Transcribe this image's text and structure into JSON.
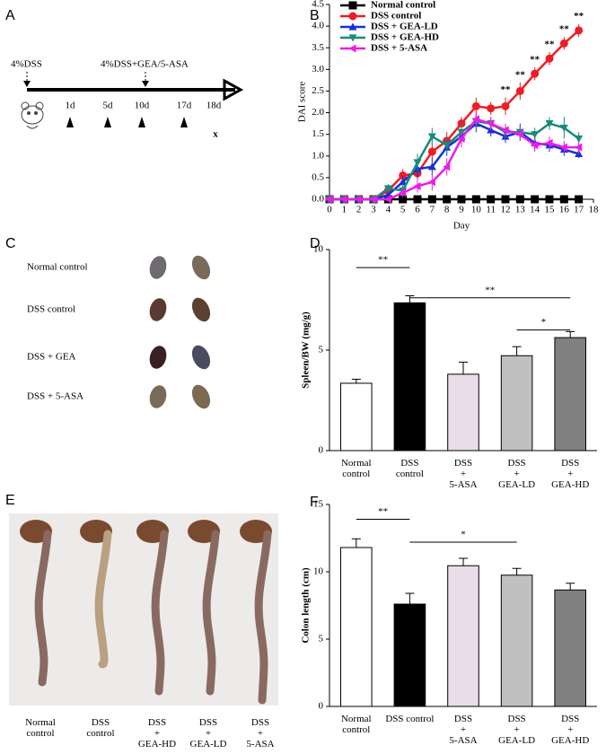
{
  "panel_a": {
    "label": "A",
    "dss_start": "4%DSS",
    "treatment_start": "4%DSS+GEA/5-ASA",
    "days": [
      "1d",
      "5d",
      "10d",
      "17d",
      "18d"
    ],
    "end_mark": "x"
  },
  "chart_data": [
    {
      "type": "line",
      "panel_label": "B",
      "xlabel": "Day",
      "ylabel": "DAI score",
      "x": [
        0,
        1,
        2,
        3,
        4,
        5,
        6,
        7,
        8,
        9,
        10,
        11,
        12,
        13,
        14,
        15,
        16,
        17
      ],
      "xlim": [
        0,
        18
      ],
      "xticks": [
        0,
        1,
        2,
        3,
        4,
        5,
        6,
        7,
        8,
        9,
        10,
        11,
        12,
        13,
        14,
        15,
        16,
        17,
        18
      ],
      "ylim": [
        0,
        4.5
      ],
      "yticks": [
        {
          "value": 0,
          "label": "0.0"
        },
        {
          "value": 0.5,
          "label": "0.5"
        },
        {
          "value": 1,
          "label": "1.0"
        },
        {
          "value": 1.5,
          "label": "1.5"
        },
        {
          "value": 2,
          "label": "2.0"
        },
        {
          "value": 2.5,
          "label": "2.5"
        },
        {
          "value": 3,
          "label": "3.0"
        },
        {
          "value": 3.5,
          "label": "3.5"
        },
        {
          "value": 4,
          "label": "4.0"
        },
        {
          "value": 4.5,
          "label": "4.5"
        }
      ],
      "legend": "upper left",
      "series": [
        {
          "name": "Normal control",
          "color": "#000000",
          "marker": "square",
          "values": [
            0,
            0,
            0,
            0,
            0,
            0,
            0,
            0,
            0,
            0,
            0,
            0,
            0,
            0,
            0,
            0,
            0,
            0
          ],
          "errors": [
            0,
            0,
            0,
            0,
            0,
            0,
            0,
            0,
            0,
            0,
            0,
            0,
            0,
            0,
            0,
            0,
            0,
            0
          ]
        },
        {
          "name": "DSS control",
          "color": "#ee1c24",
          "marker": "circle",
          "values": [
            0,
            0,
            0,
            0,
            0.2,
            0.55,
            0.6,
            1.1,
            1.35,
            1.75,
            2.15,
            2.1,
            2.15,
            2.5,
            2.9,
            3.25,
            3.6,
            3.9
          ],
          "errors": [
            0,
            0,
            0,
            0,
            0.1,
            0.15,
            0.15,
            0.2,
            0.2,
            0.15,
            0.2,
            0.15,
            0.2,
            0.2,
            0.15,
            0.15,
            0.15,
            0.15
          ]
        },
        {
          "name": "DSS + GEA-LD",
          "color": "#1a2fd6",
          "marker": "triangle-up",
          "values": [
            0,
            0,
            0,
            0,
            0.1,
            0.4,
            0.7,
            0.75,
            1.2,
            1.45,
            1.75,
            1.6,
            1.45,
            1.55,
            1.3,
            1.25,
            1.15,
            1.05
          ],
          "errors": [
            0,
            0,
            0,
            0,
            0.1,
            0.15,
            0.2,
            0.2,
            0.2,
            0.15,
            0.2,
            0.15,
            0.15,
            0.2,
            0.15,
            0.15,
            0.15,
            0.1
          ]
        },
        {
          "name": "DSS + GEA-HD",
          "color": "#1a8a7a",
          "marker": "triangle-down",
          "values": [
            0,
            0,
            0,
            0,
            0.25,
            0.2,
            0.85,
            1.45,
            1.25,
            1.55,
            1.8,
            1.75,
            1.55,
            1.55,
            1.5,
            1.75,
            1.65,
            1.4
          ],
          "errors": [
            0,
            0,
            0,
            0,
            0.1,
            0.15,
            0.2,
            0.2,
            0.2,
            0.2,
            0.15,
            0.15,
            0.15,
            0.15,
            0.15,
            0.15,
            0.25,
            0.15
          ]
        },
        {
          "name": "DSS + 5-ASA",
          "color": "#e81ee8",
          "marker": "triangle-left",
          "values": [
            0,
            0,
            0,
            0,
            0,
            0.15,
            0.3,
            0.4,
            0.75,
            1.4,
            1.85,
            1.75,
            1.6,
            1.5,
            1.25,
            1.3,
            1.2,
            1.2
          ],
          "errors": [
            0,
            0,
            0,
            0,
            0,
            0.1,
            0.15,
            0.2,
            0.2,
            0.2,
            0.15,
            0.15,
            0.15,
            0.15,
            0.15,
            0.15,
            0.15,
            0.15
          ]
        }
      ],
      "annotations": [
        {
          "text": "**",
          "x": 12
        },
        {
          "text": "**",
          "x": 13
        },
        {
          "text": "**",
          "x": 14
        },
        {
          "text": "**",
          "x": 15
        },
        {
          "text": "**",
          "x": 16
        },
        {
          "text": "**",
          "x": 17
        }
      ]
    },
    {
      "type": "bar",
      "panel_label": "D",
      "ylabel": "Spleen/BW (mg/g)",
      "categories": [
        [
          "Normal",
          "control"
        ],
        [
          "DSS",
          "control"
        ],
        [
          "DSS",
          "+",
          "5-ASA"
        ],
        [
          "DSS",
          "+",
          "GEA-LD"
        ],
        [
          "DSS",
          "+",
          "GEA-HD"
        ]
      ],
      "values": [
        3.35,
        7.35,
        3.8,
        4.72,
        5.62
      ],
      "errors": [
        0.2,
        0.35,
        0.6,
        0.45,
        0.3
      ],
      "colors": [
        "#ffffff",
        "#000000",
        "#e8dde8",
        "#c0c0c0",
        "#808080"
      ],
      "ylim": [
        0,
        10
      ],
      "yticks": [
        0,
        5,
        10
      ],
      "significance": [
        {
          "from": 0,
          "to": 1,
          "y": 9.1,
          "label": "**"
        },
        {
          "from": 1,
          "to": 4,
          "y": 7.6,
          "label": "**"
        },
        {
          "from": 3,
          "to": 4,
          "y": 6.0,
          "label": "*"
        }
      ]
    },
    {
      "type": "bar",
      "panel_label": "F",
      "ylabel": "Colon length (cm)",
      "categories": [
        [
          "Normal",
          "control"
        ],
        [
          "DSS control"
        ],
        [
          "DSS",
          "+",
          "5-ASA"
        ],
        [
          "DSS",
          "+",
          "GEA-LD"
        ],
        [
          "DSS",
          "+",
          "GEA-HD"
        ]
      ],
      "values": [
        11.8,
        7.6,
        10.45,
        9.75,
        8.65
      ],
      "errors": [
        0.65,
        0.8,
        0.55,
        0.5,
        0.5
      ],
      "colors": [
        "#ffffff",
        "#000000",
        "#e8dde8",
        "#c0c0c0",
        "#808080"
      ],
      "ylim": [
        0,
        15
      ],
      "yticks": [
        0,
        5,
        10,
        15
      ],
      "significance": [
        {
          "from": 0,
          "to": 1,
          "y": 13.9,
          "label": "**"
        },
        {
          "from": 1,
          "to": 3,
          "y": 12.2,
          "label": "*"
        }
      ]
    }
  ],
  "panel_c": {
    "label": "C",
    "groups": [
      "Normal control",
      "DSS control",
      "DSS + GEA",
      "DSS + 5-ASA"
    ]
  },
  "panel_e": {
    "label": "E",
    "groups": [
      [
        "Normal",
        "control"
      ],
      [
        "DSS",
        "control"
      ],
      [
        "DSS",
        "+",
        "GEA-HD"
      ],
      [
        "DSS",
        "+",
        "GEA-LD"
      ],
      [
        "DSS",
        "+",
        "5-ASA"
      ]
    ]
  }
}
